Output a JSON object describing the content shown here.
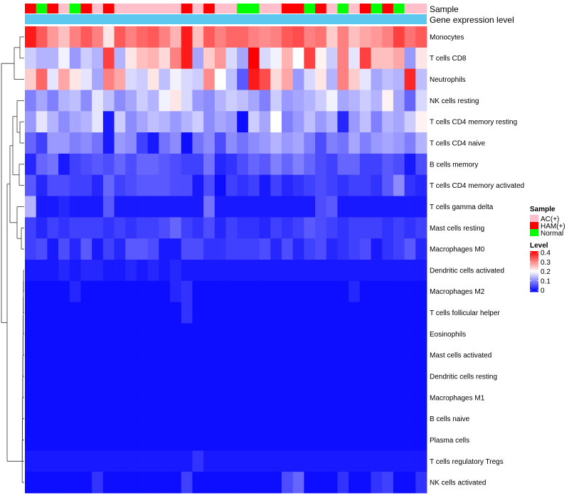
{
  "chart_data": {
    "type": "heatmap",
    "rows": [
      "Monocytes",
      "T cells CD8",
      "Neutrophils",
      "NK cells resting",
      "T cells CD4 memory resting",
      "T cells CD4 naive",
      "B cells memory",
      "T cells CD4 memory activated",
      "T cells gamma delta",
      "Mast cells resting",
      "Macrophages M0",
      "Dendritic cells activated",
      "Macrophages M2",
      "T cells follicular helper",
      "Eosinophils",
      "Mast cells activated",
      "Dendritic cells resting",
      "Macrophages M1",
      "B cells naive",
      "Plasma cells",
      "T cells regulatory  Tregs",
      "NK cells activated"
    ],
    "column_count": 36,
    "column_sample": [
      "HAM(+)",
      "Normal",
      "HAM(+)",
      "AC(+)",
      "Normal",
      "HAM(+)",
      "AC(+)",
      "HAM(+)",
      "AC(+)",
      "AC(+)",
      "AC(+)",
      "AC(+)",
      "AC(+)",
      "AC(+)",
      "HAM(+)",
      "AC(+)",
      "HAM(+)",
      "AC(+)",
      "AC(+)",
      "Normal",
      "Normal",
      "AC(+)",
      "AC(+)",
      "HAM(+)",
      "HAM(+)",
      "Normal",
      "HAM(+)",
      "AC(+)",
      "Normal",
      "AC(+)",
      "HAM(+)",
      "Normal",
      "HAM(+)",
      "Normal",
      "AC(+)",
      "AC(+)"
    ],
    "annotation_tracks": [
      "Sample",
      "Gene expression level"
    ],
    "gene_expression_color": "#5cc8f0",
    "legend_sample": {
      "title": "Sample",
      "entries": [
        {
          "label": "AC(+)",
          "color": "#ffc0cb"
        },
        {
          "label": "HAM(+)",
          "color": "#ff0000"
        },
        {
          "label": "Normal",
          "color": "#00ff00"
        }
      ]
    },
    "legend_level": {
      "title": "Level",
      "ticks": [
        "0.4",
        "0.3",
        "0.2",
        "0.1",
        "0"
      ],
      "min": 0,
      "max": 0.4,
      "colors": [
        "#0000ff",
        "#ffffff",
        "#ff0000"
      ]
    },
    "row_dendrogram": true,
    "values": {
      "Monocytes": [
        0.38,
        0.33,
        0.28,
        0.25,
        0.3,
        0.33,
        0.3,
        0.22,
        0.33,
        0.3,
        0.32,
        0.33,
        0.3,
        0.26,
        0.38,
        0.25,
        0.33,
        0.3,
        0.32,
        0.32,
        0.3,
        0.29,
        0.3,
        0.33,
        0.34,
        0.3,
        0.31,
        0.24,
        0.3,
        0.25,
        0.27,
        0.28,
        0.3,
        0.35,
        0.31,
        0.33
      ],
      "T cells CD8": [
        0.16,
        0.14,
        0.14,
        0.19,
        0.12,
        0.16,
        0.14,
        0.35,
        0.14,
        0.22,
        0.25,
        0.26,
        0.23,
        0.3,
        0.38,
        0.13,
        0.24,
        0.28,
        0.17,
        0.13,
        0.4,
        0.17,
        0.19,
        0.26,
        0.2,
        0.35,
        0.21,
        0.16,
        0.3,
        0.18,
        0.35,
        0.25,
        0.25,
        0.27,
        0.12,
        0.22
      ],
      "Neutrophils": [
        0.24,
        0.32,
        0.18,
        0.27,
        0.22,
        0.18,
        0.13,
        0.3,
        0.27,
        0.17,
        0.16,
        0.22,
        0.15,
        0.19,
        0.17,
        0.16,
        0.29,
        0.2,
        0.15,
        0.07,
        0.38,
        0.34,
        0.23,
        0.27,
        0.12,
        0.17,
        0.22,
        0.14,
        0.3,
        0.24,
        0.18,
        0.13,
        0.15,
        0.14,
        0.37,
        0.15
      ],
      "NK cells resting": [
        0.1,
        0.13,
        0.1,
        0.14,
        0.15,
        0.11,
        0.18,
        0.15,
        0.11,
        0.13,
        0.16,
        0.14,
        0.19,
        0.22,
        0.17,
        0.12,
        0.11,
        0.14,
        0.16,
        0.15,
        0.13,
        0.1,
        0.16,
        0.12,
        0.13,
        0.14,
        0.16,
        0.19,
        0.13,
        0.14,
        0.16,
        0.14,
        0.21,
        0.13,
        0.08,
        0.17
      ],
      "T cells CD4 memory resting": [
        0.12,
        0.18,
        0.14,
        0.11,
        0.13,
        0.14,
        0.18,
        0.02,
        0.16,
        0.11,
        0.13,
        0.15,
        0.14,
        0.12,
        0.14,
        0.16,
        0.11,
        0.13,
        0.12,
        0.01,
        0.16,
        0.13,
        0.2,
        0.1,
        0.12,
        0.15,
        0.12,
        0.14,
        0.03,
        0.12,
        0.15,
        0.1,
        0.14,
        0.13,
        0.16,
        0.21
      ],
      "T cells CD4 naive": [
        0.08,
        0.05,
        0.12,
        0.12,
        0.1,
        0.11,
        0.09,
        0.02,
        0.12,
        0.11,
        0.05,
        0.02,
        0.09,
        0.11,
        0.01,
        0.09,
        0.11,
        0.06,
        0.11,
        0.09,
        0.11,
        0.12,
        0.14,
        0.12,
        0.13,
        0.1,
        0.06,
        0.1,
        0.09,
        0.13,
        0.1,
        0.12,
        0.13,
        0.12,
        0.1,
        0.14
      ],
      "B cells memory": [
        0.03,
        0.08,
        0.09,
        0.02,
        0.05,
        0.06,
        0.07,
        0.06,
        0.08,
        0.06,
        0.08,
        0.08,
        0.07,
        0.06,
        0.05,
        0.05,
        0.09,
        0.03,
        0.04,
        0.06,
        0.08,
        0.07,
        0.1,
        0.08,
        0.1,
        0.08,
        0.06,
        0.05,
        0.08,
        0.08,
        0.05,
        0.05,
        0.07,
        0.06,
        0.02,
        0.06
      ],
      "T cells CD4 memory activated": [
        0.07,
        0.03,
        0.06,
        0.06,
        0.05,
        0.05,
        0.03,
        0.08,
        0.05,
        0.06,
        0.07,
        0.07,
        0.07,
        0.06,
        0.06,
        0.02,
        0.06,
        0.01,
        0.05,
        0.04,
        0.05,
        0.02,
        0.05,
        0.03,
        0.04,
        0.05,
        0.06,
        0.05,
        0.04,
        0.05,
        0.05,
        0.04,
        0.07,
        0.11,
        0.04,
        0.03
      ],
      "T cells gamma delta": [
        0.14,
        0.02,
        0.02,
        0.03,
        0.02,
        0.02,
        0.02,
        0.07,
        0.02,
        0.02,
        0.02,
        0.02,
        0.02,
        0.02,
        0.02,
        0.02,
        0.09,
        0.02,
        0.02,
        0.02,
        0.02,
        0.02,
        0.02,
        0.02,
        0.02,
        0.02,
        0.06,
        0.07,
        0.02,
        0.02,
        0.02,
        0.02,
        0.02,
        0.02,
        0.02,
        0.02
      ],
      "Mast cells resting": [
        0.05,
        0.03,
        0.05,
        0.04,
        0.05,
        0.05,
        0.05,
        0.04,
        0.05,
        0.04,
        0.05,
        0.05,
        0.06,
        0.08,
        0.05,
        0.04,
        0.06,
        0.03,
        0.05,
        0.04,
        0.04,
        0.03,
        0.05,
        0.04,
        0.05,
        0.07,
        0.06,
        0.05,
        0.04,
        0.05,
        0.05,
        0.05,
        0.04,
        0.05,
        0.04,
        0.05
      ],
      "Macrophages M0": [
        0.05,
        0.06,
        0.02,
        0.06,
        0.03,
        0.07,
        0.02,
        0.05,
        0.03,
        0.07,
        0.07,
        0.06,
        0.02,
        0.02,
        0.06,
        0.06,
        0.04,
        0.04,
        0.05,
        0.05,
        0.05,
        0.06,
        0.03,
        0.06,
        0.03,
        0.05,
        0.06,
        0.03,
        0.04,
        0.05,
        0.06,
        0.02,
        0.04,
        0.05,
        0.07,
        0.03
      ],
      "Dendritic cells activated": [
        0.02,
        0.02,
        0.02,
        0.03,
        0.02,
        0.03,
        0.03,
        0.02,
        0.02,
        0.03,
        0.02,
        0.03,
        0.02,
        0.03,
        0.02,
        0.02,
        0.02,
        0.02,
        0.02,
        0.02,
        0.02,
        0.02,
        0.02,
        0.02,
        0.02,
        0.02,
        0.02,
        0.02,
        0.02,
        0.02,
        0.02,
        0.02,
        0.02,
        0.02,
        0.02,
        0.02
      ],
      "Macrophages M2": [
        0.01,
        0.01,
        0.01,
        0.01,
        0.03,
        0.01,
        0.01,
        0.01,
        0.01,
        0.01,
        0.01,
        0.01,
        0.01,
        0.03,
        0.04,
        0.01,
        0.01,
        0.01,
        0.01,
        0.01,
        0.01,
        0.01,
        0.01,
        0.01,
        0.01,
        0.01,
        0.01,
        0.01,
        0.01,
        0.03,
        0.01,
        0.01,
        0.01,
        0.01,
        0.01,
        0.01
      ],
      "T cells follicular helper": [
        0.01,
        0.01,
        0.01,
        0.01,
        0.01,
        0.01,
        0.01,
        0.01,
        0.01,
        0.01,
        0.01,
        0.01,
        0.01,
        0.01,
        0.04,
        0.01,
        0.01,
        0.01,
        0.01,
        0.01,
        0.01,
        0.01,
        0.01,
        0.01,
        0.01,
        0.01,
        0.01,
        0.01,
        0.01,
        0.01,
        0.01,
        0.01,
        0.01,
        0.01,
        0.01,
        0.01
      ],
      "Eosinophils": [
        0.01,
        0.01,
        0.01,
        0.01,
        0.01,
        0.01,
        0.01,
        0.01,
        0.01,
        0.01,
        0.01,
        0.01,
        0.01,
        0.01,
        0.01,
        0.01,
        0.01,
        0.01,
        0.01,
        0.01,
        0.01,
        0.01,
        0.01,
        0.01,
        0.01,
        0.01,
        0.01,
        0.01,
        0.01,
        0.01,
        0.01,
        0.01,
        0.01,
        0.01,
        0.01,
        0.01
      ],
      "Mast cells activated": [
        0.01,
        0.01,
        0.01,
        0.01,
        0.01,
        0.01,
        0.01,
        0.01,
        0.01,
        0.01,
        0.01,
        0.01,
        0.01,
        0.01,
        0.01,
        0.01,
        0.01,
        0.01,
        0.01,
        0.01,
        0.01,
        0.01,
        0.01,
        0.01,
        0.01,
        0.01,
        0.01,
        0.01,
        0.01,
        0.01,
        0.01,
        0.01,
        0.01,
        0.01,
        0.01,
        0.01
      ],
      "Dendritic cells resting": [
        0.01,
        0.01,
        0.01,
        0.01,
        0.01,
        0.01,
        0.01,
        0.01,
        0.01,
        0.01,
        0.01,
        0.01,
        0.01,
        0.01,
        0.01,
        0.01,
        0.01,
        0.01,
        0.01,
        0.01,
        0.01,
        0.01,
        0.01,
        0.01,
        0.01,
        0.01,
        0.01,
        0.01,
        0.01,
        0.01,
        0.01,
        0.01,
        0.01,
        0.01,
        0.01,
        0.01
      ],
      "Macrophages M1": [
        0.01,
        0.01,
        0.01,
        0.01,
        0.01,
        0.01,
        0.01,
        0.01,
        0.01,
        0.01,
        0.01,
        0.01,
        0.01,
        0.01,
        0.01,
        0.01,
        0.01,
        0.01,
        0.01,
        0.01,
        0.01,
        0.01,
        0.01,
        0.01,
        0.01,
        0.01,
        0.01,
        0.01,
        0.01,
        0.01,
        0.01,
        0.01,
        0.01,
        0.01,
        0.01,
        0.01
      ],
      "B cells naive": [
        0.01,
        0.01,
        0.01,
        0.01,
        0.01,
        0.01,
        0.01,
        0.01,
        0.01,
        0.01,
        0.01,
        0.01,
        0.01,
        0.01,
        0.01,
        0.01,
        0.01,
        0.01,
        0.01,
        0.01,
        0.01,
        0.01,
        0.01,
        0.01,
        0.01,
        0.01,
        0.01,
        0.01,
        0.01,
        0.01,
        0.01,
        0.01,
        0.01,
        0.01,
        0.01,
        0.01
      ],
      "Plasma cells": [
        0.01,
        0.01,
        0.01,
        0.01,
        0.01,
        0.01,
        0.01,
        0.01,
        0.01,
        0.01,
        0.01,
        0.01,
        0.01,
        0.01,
        0.01,
        0.01,
        0.01,
        0.01,
        0.01,
        0.01,
        0.01,
        0.01,
        0.01,
        0.01,
        0.01,
        0.01,
        0.01,
        0.01,
        0.01,
        0.01,
        0.01,
        0.01,
        0.01,
        0.01,
        0.01,
        0.01
      ],
      "T cells regulatory  Tregs": [
        0.02,
        0.02,
        0.02,
        0.02,
        0.02,
        0.02,
        0.02,
        0.02,
        0.02,
        0.02,
        0.02,
        0.02,
        0.02,
        0.02,
        0.02,
        0.04,
        0.02,
        0.02,
        0.02,
        0.02,
        0.02,
        0.02,
        0.02,
        0.02,
        0.02,
        0.02,
        0.02,
        0.02,
        0.02,
        0.02,
        0.02,
        0.02,
        0.02,
        0.02,
        0.02,
        0.02
      ],
      "NK cells activated": [
        0.01,
        0.01,
        0.01,
        0.01,
        0.01,
        0.01,
        0.04,
        0.01,
        0.01,
        0.01,
        0.01,
        0.01,
        0.01,
        0.01,
        0.05,
        0.01,
        0.01,
        0.01,
        0.01,
        0.01,
        0.01,
        0.01,
        0.01,
        0.06,
        0.08,
        0.01,
        0.01,
        0.01,
        0.04,
        0.01,
        0.01,
        0.04,
        0.05,
        0.01,
        0.01,
        0.04
      ]
    }
  }
}
